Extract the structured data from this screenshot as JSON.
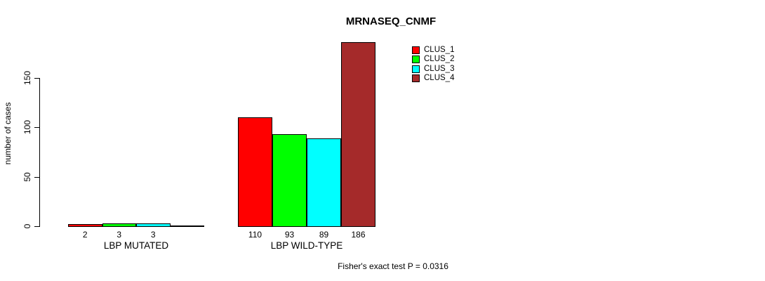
{
  "chart_data": {
    "type": "bar",
    "title": "MRNASEQ_CNMF",
    "xlabel": "",
    "ylabel": "number of cases",
    "categories": [
      "LBP MUTATED",
      "LBP WILD-TYPE"
    ],
    "series": [
      {
        "name": "CLUS_1",
        "color": "#ff0000",
        "values": [
          2,
          110
        ]
      },
      {
        "name": "CLUS_2",
        "color": "#00ff00",
        "values": [
          3,
          93
        ]
      },
      {
        "name": "CLUS_3",
        "color": "#00ffff",
        "values": [
          3,
          89
        ]
      },
      {
        "name": "CLUS_4",
        "color": "#a52a2a",
        "values": [
          0,
          186
        ]
      }
    ],
    "value_labels": [
      [
        "2",
        "3",
        "3",
        ""
      ],
      [
        "110",
        "93",
        "89",
        "186"
      ]
    ],
    "y_ticks": [
      "0",
      "50",
      "100",
      "150"
    ],
    "ylim": [
      0,
      150
    ],
    "grid": false,
    "legend_position": "top-right",
    "legend_entries": [
      "CLUS_1",
      "CLUS_2",
      "CLUS_3",
      "CLUS_4"
    ],
    "annotation": "Fisher's exact test P = 0.0316",
    "axis_color": "#000000",
    "bar_border_color": "#000000"
  }
}
